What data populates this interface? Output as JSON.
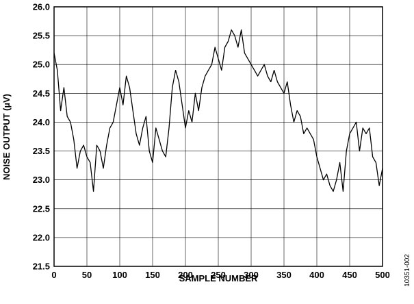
{
  "chart_data": {
    "type": "line",
    "xlabel": "SAMPLE NUMBER",
    "ylabel": "NOISE OUTPUT (µV)",
    "xlim": [
      0,
      500
    ],
    "ylim": [
      21.5,
      26.0
    ],
    "xticks": [
      0,
      50,
      100,
      150,
      200,
      250,
      300,
      350,
      400,
      450,
      500
    ],
    "yticks": [
      21.5,
      22.0,
      22.5,
      23.0,
      23.5,
      24.0,
      24.5,
      25.0,
      25.5,
      26.0
    ],
    "ytick_labels": [
      "21.5",
      "22.0",
      "22.5",
      "23.0",
      "23.5",
      "24.0",
      "24.5",
      "25.0",
      "25.5",
      "26.0"
    ],
    "grid": true,
    "line_color": "#000000",
    "series": [
      {
        "x": [
          0,
          5,
          10,
          15,
          20,
          25,
          30,
          35,
          40,
          45,
          50,
          55,
          60,
          65,
          70,
          75,
          80,
          85,
          90,
          95,
          100,
          105,
          110,
          115,
          120,
          125,
          130,
          135,
          140,
          145,
          150,
          155,
          160,
          165,
          170,
          175,
          180,
          185,
          190,
          195,
          200,
          205,
          210,
          215,
          220,
          225,
          230,
          235,
          240,
          245,
          250,
          255,
          260,
          265,
          270,
          275,
          280,
          285,
          290,
          295,
          300,
          305,
          310,
          315,
          320,
          325,
          330,
          335,
          340,
          345,
          350,
          355,
          360,
          365,
          370,
          375,
          380,
          385,
          390,
          395,
          400,
          405,
          410,
          415,
          420,
          425,
          430,
          435,
          440,
          445,
          450,
          455,
          460,
          465,
          470,
          475,
          480,
          485,
          490,
          495,
          500
        ],
        "values": [
          25.2,
          24.9,
          24.2,
          24.6,
          24.1,
          24.0,
          23.7,
          23.2,
          23.5,
          23.6,
          23.4,
          23.3,
          22.8,
          23.6,
          23.5,
          23.2,
          23.6,
          23.9,
          24.0,
          24.3,
          24.6,
          24.3,
          24.8,
          24.6,
          24.2,
          23.8,
          23.6,
          23.9,
          24.1,
          23.5,
          23.3,
          23.9,
          23.7,
          23.5,
          23.4,
          23.9,
          24.6,
          24.9,
          24.7,
          24.3,
          23.9,
          24.2,
          24.0,
          24.5,
          24.2,
          24.6,
          24.8,
          24.9,
          25.0,
          25.3,
          25.1,
          24.9,
          25.3,
          25.4,
          25.6,
          25.5,
          25.3,
          25.6,
          25.2,
          25.1,
          25.0,
          24.9,
          24.8,
          24.9,
          25.0,
          24.8,
          24.7,
          24.9,
          24.7,
          24.6,
          24.5,
          24.7,
          24.3,
          24.0,
          24.2,
          24.1,
          23.8,
          23.9,
          23.8,
          23.7,
          23.4,
          23.2,
          23.0,
          23.1,
          22.9,
          22.8,
          23.0,
          23.3,
          22.8,
          23.5,
          23.8,
          23.9,
          24.0,
          23.5,
          23.9,
          23.8,
          23.9,
          23.4,
          23.3,
          22.9,
          23.2
        ]
      }
    ]
  },
  "figure_id": "10351-002"
}
